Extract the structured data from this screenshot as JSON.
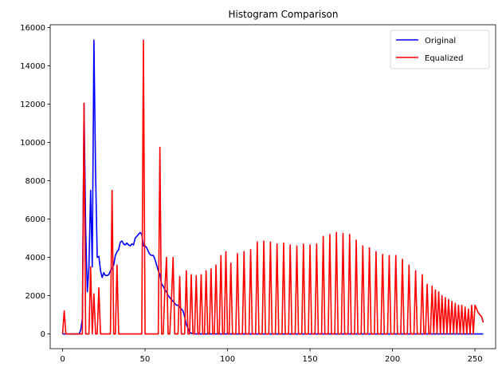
{
  "chart_data": {
    "type": "line",
    "title": "Histogram Comparison",
    "xlabel": "",
    "ylabel": "",
    "xlim": [
      -7.5,
      262.5
    ],
    "ylim": [
      -770,
      16150
    ],
    "x_ticks": [
      0,
      50,
      100,
      150,
      200,
      250
    ],
    "y_ticks": [
      0,
      2000,
      4000,
      6000,
      8000,
      10000,
      12000,
      14000,
      16000
    ],
    "grid": false,
    "legend": "top-right",
    "series": [
      {
        "name": "Original",
        "color": "#0000ff",
        "points": [
          [
            0,
            0
          ],
          [
            10,
            0
          ],
          [
            11,
            200
          ],
          [
            12,
            800
          ],
          [
            13,
            12050
          ],
          [
            14,
            5500
          ],
          [
            15,
            2200
          ],
          [
            16,
            3500
          ],
          [
            17,
            7500
          ],
          [
            18,
            3500
          ],
          [
            19,
            15350
          ],
          [
            20,
            8500
          ],
          [
            21,
            4000
          ],
          [
            22,
            4050
          ],
          [
            23,
            3300
          ],
          [
            24,
            2950
          ],
          [
            25,
            3200
          ],
          [
            26,
            3050
          ],
          [
            27,
            3050
          ],
          [
            28,
            3100
          ],
          [
            29,
            3300
          ],
          [
            30,
            3400
          ],
          [
            31,
            3600
          ],
          [
            32,
            4100
          ],
          [
            33,
            4300
          ],
          [
            34,
            4400
          ],
          [
            35,
            4800
          ],
          [
            36,
            4850
          ],
          [
            37,
            4700
          ],
          [
            38,
            4650
          ],
          [
            39,
            4750
          ],
          [
            40,
            4650
          ],
          [
            41,
            4600
          ],
          [
            42,
            4700
          ],
          [
            43,
            4650
          ],
          [
            44,
            5000
          ],
          [
            45,
            5100
          ],
          [
            46,
            5200
          ],
          [
            47,
            5300
          ],
          [
            48,
            5200
          ],
          [
            49,
            4600
          ],
          [
            50,
            4600
          ],
          [
            51,
            4500
          ],
          [
            52,
            4300
          ],
          [
            53,
            4150
          ],
          [
            54,
            4100
          ],
          [
            55,
            4100
          ],
          [
            56,
            3900
          ],
          [
            57,
            3600
          ],
          [
            58,
            3300
          ],
          [
            59,
            3100
          ],
          [
            60,
            2600
          ],
          [
            61,
            2500
          ],
          [
            62,
            2300
          ],
          [
            63,
            2200
          ],
          [
            64,
            2000
          ],
          [
            65,
            1900
          ],
          [
            66,
            1800
          ],
          [
            67,
            1700
          ],
          [
            68,
            1600
          ],
          [
            69,
            1500
          ],
          [
            70,
            1500
          ],
          [
            71,
            1400
          ],
          [
            72,
            1300
          ],
          [
            73,
            1200
          ],
          [
            74,
            900
          ],
          [
            75,
            500
          ],
          [
            76,
            300
          ],
          [
            77,
            100
          ],
          [
            78,
            30
          ],
          [
            80,
            0
          ],
          [
            255,
            0
          ]
        ]
      },
      {
        "name": "Equalized",
        "color": "#ff0000",
        "points": [
          [
            0,
            0
          ],
          [
            1,
            1200
          ],
          [
            2,
            0
          ],
          [
            12,
            0
          ],
          [
            13,
            12050
          ],
          [
            14,
            0
          ],
          [
            16,
            0
          ],
          [
            17,
            3500
          ],
          [
            18,
            0
          ],
          [
            19,
            2100
          ],
          [
            20,
            0
          ],
          [
            21,
            0
          ],
          [
            22,
            2400
          ],
          [
            23,
            0
          ],
          [
            29,
            0
          ],
          [
            30,
            7500
          ],
          [
            31,
            0
          ],
          [
            32,
            0
          ],
          [
            33,
            3600
          ],
          [
            34,
            0
          ],
          [
            48,
            0
          ],
          [
            49,
            15350
          ],
          [
            50,
            0
          ],
          [
            58,
            0
          ],
          [
            59,
            9750
          ],
          [
            60,
            0
          ],
          [
            61,
            0
          ],
          [
            62,
            2300
          ],
          [
            63,
            4000
          ],
          [
            64,
            0
          ],
          [
            65,
            0
          ],
          [
            66,
            1800
          ],
          [
            67,
            4000
          ],
          [
            68,
            0
          ],
          [
            70,
            0
          ],
          [
            71,
            3000
          ],
          [
            72,
            0
          ],
          [
            74,
            0
          ],
          [
            75,
            3300
          ],
          [
            76,
            0
          ],
          [
            77,
            0
          ],
          [
            78,
            3100
          ],
          [
            79,
            0
          ],
          [
            80,
            0
          ],
          [
            81,
            3050
          ],
          [
            82,
            0
          ],
          [
            83,
            0
          ],
          [
            84,
            3100
          ],
          [
            85,
            0
          ],
          [
            86,
            0
          ],
          [
            87,
            3300
          ],
          [
            88,
            0
          ],
          [
            89,
            0
          ],
          [
            90,
            3400
          ],
          [
            91,
            0
          ],
          [
            92,
            0
          ],
          [
            93,
            3600
          ],
          [
            94,
            0
          ],
          [
            95,
            0
          ],
          [
            96,
            4100
          ],
          [
            97,
            0
          ],
          [
            98,
            0
          ],
          [
            99,
            4300
          ],
          [
            100,
            0
          ],
          [
            101,
            0
          ],
          [
            102,
            3700
          ],
          [
            103,
            0
          ],
          [
            105,
            0
          ],
          [
            106,
            4200
          ],
          [
            107,
            0
          ],
          [
            109,
            0
          ],
          [
            110,
            4300
          ],
          [
            111,
            0
          ],
          [
            113,
            0
          ],
          [
            114,
            4400
          ],
          [
            115,
            0
          ],
          [
            117,
            0
          ],
          [
            118,
            4800
          ],
          [
            119,
            0
          ],
          [
            121,
            0
          ],
          [
            122,
            4850
          ],
          [
            123,
            0
          ],
          [
            125,
            0
          ],
          [
            126,
            4800
          ],
          [
            127,
            0
          ],
          [
            129,
            0
          ],
          [
            130,
            4700
          ],
          [
            131,
            0
          ],
          [
            133,
            0
          ],
          [
            134,
            4750
          ],
          [
            135,
            0
          ],
          [
            137,
            0
          ],
          [
            138,
            4650
          ],
          [
            139,
            0
          ],
          [
            141,
            0
          ],
          [
            142,
            4600
          ],
          [
            143,
            0
          ],
          [
            145,
            0
          ],
          [
            146,
            4700
          ],
          [
            147,
            0
          ],
          [
            149,
            0
          ],
          [
            150,
            4650
          ],
          [
            151,
            0
          ],
          [
            153,
            0
          ],
          [
            154,
            4700
          ],
          [
            155,
            0
          ],
          [
            157,
            0
          ],
          [
            158,
            5100
          ],
          [
            159,
            0
          ],
          [
            161,
            0
          ],
          [
            162,
            5200
          ],
          [
            163,
            0
          ],
          [
            165,
            0
          ],
          [
            166,
            5300
          ],
          [
            167,
            0
          ],
          [
            169,
            0
          ],
          [
            170,
            5250
          ],
          [
            171,
            0
          ],
          [
            173,
            0
          ],
          [
            174,
            5200
          ],
          [
            175,
            0
          ],
          [
            177,
            0
          ],
          [
            178,
            4900
          ],
          [
            179,
            0
          ],
          [
            181,
            0
          ],
          [
            182,
            4600
          ],
          [
            183,
            0
          ],
          [
            185,
            0
          ],
          [
            186,
            4500
          ],
          [
            187,
            0
          ],
          [
            189,
            0
          ],
          [
            190,
            4300
          ],
          [
            191,
            0
          ],
          [
            193,
            0
          ],
          [
            194,
            4150
          ],
          [
            195,
            0
          ],
          [
            197,
            0
          ],
          [
            198,
            4100
          ],
          [
            199,
            0
          ],
          [
            201,
            0
          ],
          [
            202,
            4100
          ],
          [
            203,
            0
          ],
          [
            205,
            0
          ],
          [
            206,
            3900
          ],
          [
            207,
            0
          ],
          [
            209,
            0
          ],
          [
            210,
            3600
          ],
          [
            211,
            0
          ],
          [
            213,
            0
          ],
          [
            214,
            3300
          ],
          [
            215,
            0
          ],
          [
            217,
            0
          ],
          [
            218,
            3100
          ],
          [
            219,
            0
          ],
          [
            220,
            0
          ],
          [
            221,
            2600
          ],
          [
            222,
            0
          ],
          [
            223,
            0
          ],
          [
            224,
            2500
          ],
          [
            225,
            0
          ],
          [
            226,
            2300
          ],
          [
            227,
            0
          ],
          [
            228,
            2200
          ],
          [
            229,
            0
          ],
          [
            230,
            2000
          ],
          [
            231,
            0
          ],
          [
            232,
            1900
          ],
          [
            233,
            0
          ],
          [
            234,
            1800
          ],
          [
            235,
            0
          ],
          [
            236,
            1700
          ],
          [
            237,
            0
          ],
          [
            238,
            1600
          ],
          [
            239,
            0
          ],
          [
            240,
            1500
          ],
          [
            241,
            0
          ],
          [
            242,
            1500
          ],
          [
            243,
            0
          ],
          [
            244,
            1400
          ],
          [
            245,
            0
          ],
          [
            246,
            1300
          ],
          [
            247,
            0
          ],
          [
            248,
            1500
          ],
          [
            249,
            0
          ],
          [
            250,
            1500
          ],
          [
            251,
            1300
          ],
          [
            252,
            1100
          ],
          [
            253,
            1000
          ],
          [
            254,
            900
          ],
          [
            255,
            600
          ]
        ]
      }
    ]
  }
}
